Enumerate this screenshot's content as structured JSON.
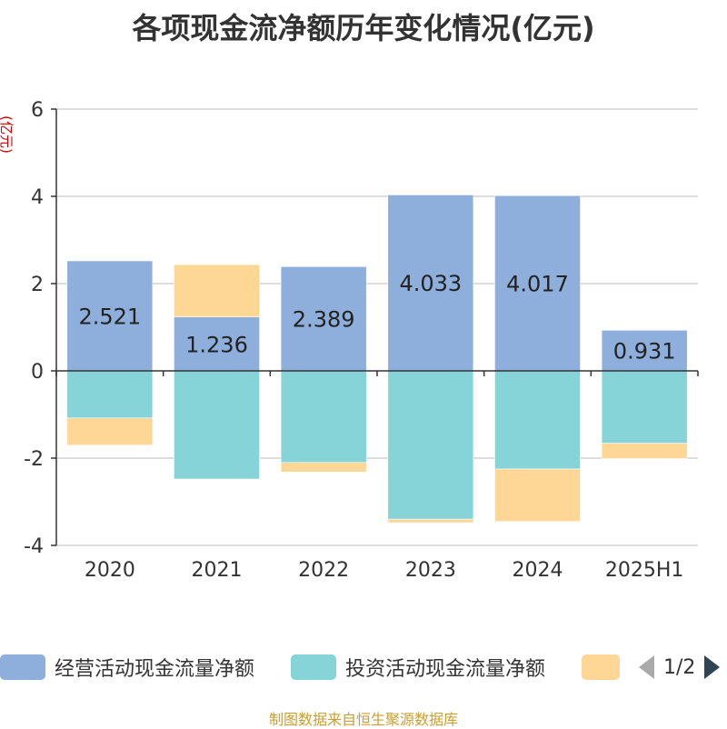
{
  "title": "各项现金流净额历年变化情况(亿元)",
  "source": "制图数据来自恒生聚源数据库",
  "colors": {
    "operating": "#8eaedb",
    "investing": "#86d4d8",
    "financing": "#fed797",
    "axis": "#333333",
    "grid": "#c8c8c8",
    "unit": "#cc0000"
  },
  "legend": {
    "items": [
      "经营活动现金流量净额",
      "投资活动现金流量净额"
    ],
    "page_indicator": "1/2"
  },
  "chart_data": {
    "type": "bar",
    "stacked": true,
    "categories": [
      "2020",
      "2021",
      "2022",
      "2023",
      "2024",
      "2025H1"
    ],
    "ylabel": "(亿元)",
    "ylim": [
      -4,
      6
    ],
    "yticks": [
      6,
      4,
      2,
      0,
      -2,
      -4
    ],
    "grid": true,
    "series": [
      {
        "key": "operating",
        "name": "经营活动现金流量净额",
        "values": [
          2.521,
          1.236,
          2.389,
          4.033,
          4.017,
          0.931
        ],
        "labels": [
          "2.521",
          "1.236",
          "2.389",
          "4.033",
          "4.017",
          "0.931"
        ]
      },
      {
        "key": "investing",
        "name": "投资活动现金流量净额",
        "values": [
          -1.08,
          -2.48,
          -2.1,
          -3.4,
          -2.25,
          -1.66
        ]
      },
      {
        "key": "financing",
        "values": [
          -0.62,
          1.2,
          -0.22,
          -0.08,
          -1.2,
          -0.35
        ]
      }
    ]
  }
}
